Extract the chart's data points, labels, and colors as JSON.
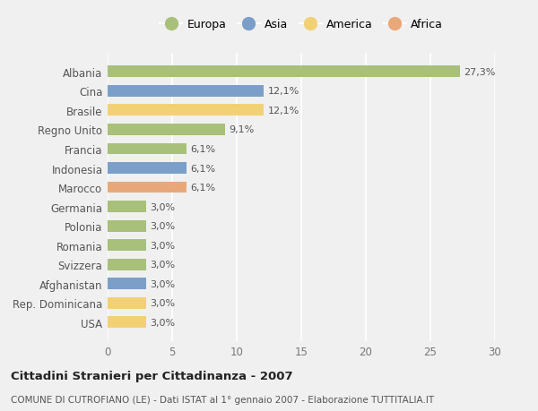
{
  "countries": [
    "Albania",
    "Cina",
    "Brasile",
    "Regno Unito",
    "Francia",
    "Indonesia",
    "Marocco",
    "Germania",
    "Polonia",
    "Romania",
    "Svizzera",
    "Afghanistan",
    "Rep. Dominicana",
    "USA"
  ],
  "values": [
    27.3,
    12.1,
    12.1,
    9.1,
    6.1,
    6.1,
    6.1,
    3.0,
    3.0,
    3.0,
    3.0,
    3.0,
    3.0,
    3.0
  ],
  "labels": [
    "27,3%",
    "12,1%",
    "12,1%",
    "9,1%",
    "6,1%",
    "6,1%",
    "6,1%",
    "3,0%",
    "3,0%",
    "3,0%",
    "3,0%",
    "3,0%",
    "3,0%",
    "3,0%"
  ],
  "continents": [
    "Europa",
    "Asia",
    "America",
    "Europa",
    "Europa",
    "Asia",
    "Africa",
    "Europa",
    "Europa",
    "Europa",
    "Europa",
    "Asia",
    "America",
    "America"
  ],
  "colors": {
    "Europa": "#a8c07a",
    "Asia": "#7b9fc8",
    "America": "#f2d174",
    "Africa": "#e8a87a"
  },
  "legend_order": [
    "Europa",
    "Asia",
    "America",
    "Africa"
  ],
  "xlim": [
    0,
    30
  ],
  "xticks": [
    0,
    5,
    10,
    15,
    20,
    25,
    30
  ],
  "title": "Cittadini Stranieri per Cittadinanza - 2007",
  "subtitle": "COMUNE DI CUTROFIANO (LE) - Dati ISTAT al 1° gennaio 2007 - Elaborazione TUTTITALIA.IT",
  "background_color": "#f0f0f0",
  "plot_bg_color": "#f0f0f0",
  "grid_color": "#ffffff",
  "bar_height": 0.6
}
